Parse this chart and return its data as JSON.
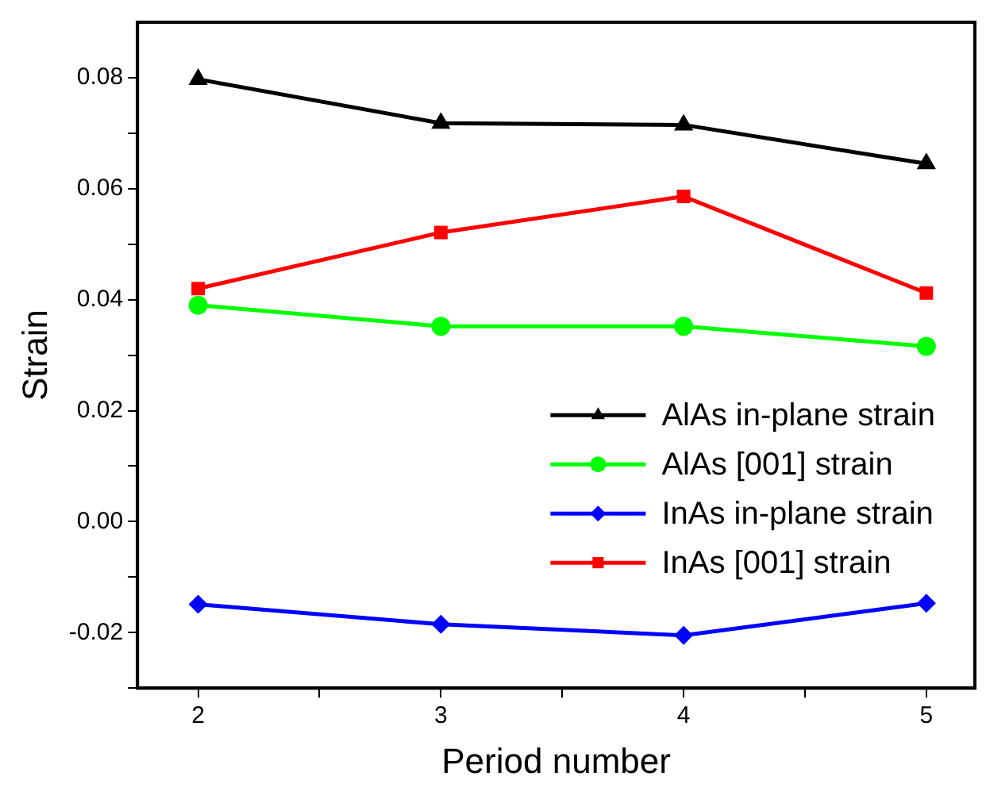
{
  "chart_data": {
    "type": "line",
    "xlabel": "Period number",
    "ylabel": "Strain",
    "x": [
      2,
      3,
      4,
      5
    ],
    "series": [
      {
        "name": "AlAs in-plane strain",
        "color": "#000000",
        "marker": "triangle",
        "values": [
          0.0797,
          0.0718,
          0.0715,
          0.0645
        ]
      },
      {
        "name": "AlAs [001] strain",
        "color": "#00ff00",
        "marker": "circle",
        "values": [
          0.039,
          0.0352,
          0.0352,
          0.0316
        ]
      },
      {
        "name": "InAs in-plane strain",
        "color": "#0000ff",
        "marker": "diamond",
        "values": [
          -0.0149,
          -0.0185,
          -0.0205,
          -0.0147
        ]
      },
      {
        "name": "InAs [001] strain",
        "color": "#ff0000",
        "marker": "square",
        "values": [
          0.042,
          0.0521,
          0.0586,
          0.0412
        ]
      }
    ],
    "xlim": [
      1.75,
      5.2
    ],
    "ylim": [
      -0.03,
      0.09
    ],
    "xticks": [
      2,
      {
        "value": 2.5,
        "label": null
      },
      3,
      {
        "value": 3.5,
        "label": null
      },
      4,
      {
        "value": 4.5,
        "label": null
      },
      5
    ],
    "yticks": [
      {
        "value": -0.03,
        "label": null
      },
      {
        "value": -0.02,
        "label": "-0.02"
      },
      {
        "value": -0.01,
        "label": null
      },
      {
        "value": 0,
        "label": "0.00"
      },
      {
        "value": 0.01,
        "label": null
      },
      {
        "value": 0.02,
        "label": "0.02"
      },
      {
        "value": 0.03,
        "label": null
      },
      {
        "value": 0.04,
        "label": "0.04"
      },
      {
        "value": 0.05,
        "label": null
      },
      {
        "value": 0.06,
        "label": "0.06"
      },
      {
        "value": 0.07,
        "label": null
      },
      {
        "value": 0.08,
        "label": "0.08"
      }
    ],
    "grid": false,
    "legend": "right",
    "line_style": "solid"
  }
}
